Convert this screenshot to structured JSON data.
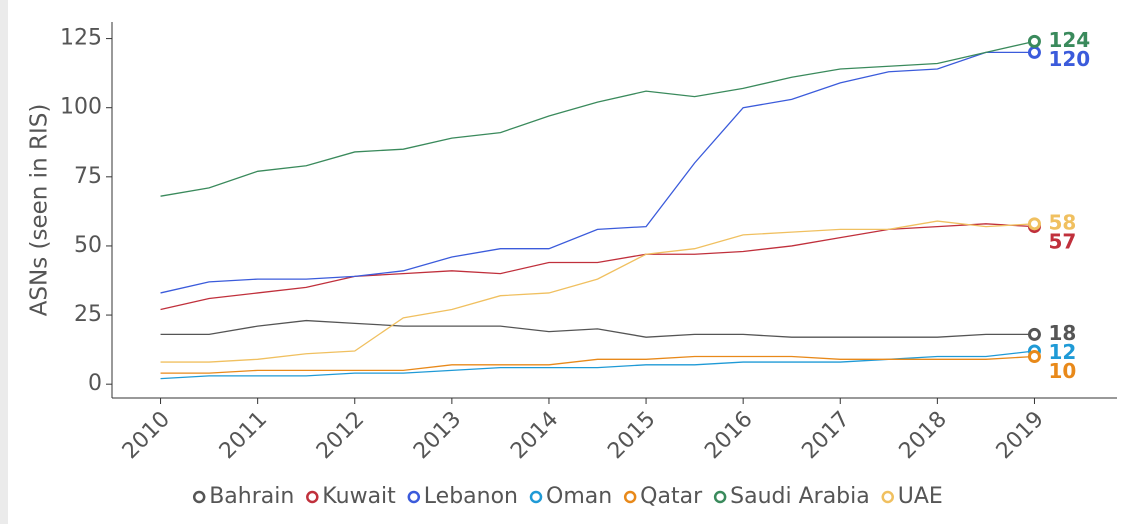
{
  "chart_data": {
    "type": "line",
    "y_label": "ASNs (seen in RIS)",
    "x": [
      2010,
      2010.5,
      2011,
      2011.5,
      2012,
      2012.5,
      2013,
      2013.5,
      2014,
      2014.5,
      2015,
      2015.5,
      2016,
      2016.5,
      2017,
      2017.5,
      2018,
      2018.5,
      2019
    ],
    "xlim": [
      2009.5,
      2019.85
    ],
    "xticks": [
      2010,
      2011,
      2012,
      2013,
      2014,
      2015,
      2016,
      2017,
      2018,
      2019
    ],
    "ylim": [
      -5,
      131
    ],
    "yticks": [
      0,
      25,
      50,
      75,
      100,
      125
    ],
    "grid": false,
    "legend": "bottom",
    "series": [
      {
        "name": "Bahrain",
        "color": "#555555",
        "values": [
          18,
          18,
          21,
          23,
          22,
          21,
          21,
          21,
          19,
          20,
          17,
          18,
          18,
          17,
          17,
          17,
          17,
          18,
          18
        ]
      },
      {
        "name": "Kuwait",
        "color": "#c0303c",
        "values": [
          27,
          31,
          33,
          35,
          39,
          40,
          41,
          40,
          44,
          44,
          47,
          47,
          48,
          50,
          53,
          56,
          57,
          58,
          57
        ]
      },
      {
        "name": "Lebanon",
        "color": "#3b5bdb",
        "values": [
          33,
          37,
          38,
          38,
          39,
          41,
          46,
          49,
          49,
          56,
          57,
          80,
          100,
          103,
          109,
          113,
          114,
          120,
          120
        ]
      },
      {
        "name": "Oman",
        "color": "#1f9ad6",
        "values": [
          2,
          3,
          3,
          3,
          4,
          4,
          5,
          6,
          6,
          6,
          7,
          7,
          8,
          8,
          8,
          9,
          10,
          10,
          12
        ]
      },
      {
        "name": "Qatar",
        "color": "#e8891a",
        "values": [
          4,
          4,
          5,
          5,
          5,
          5,
          7,
          7,
          7,
          9,
          9,
          10,
          10,
          10,
          9,
          9,
          9,
          9,
          10
        ]
      },
      {
        "name": "Saudi Arabia",
        "color": "#3a8a5c",
        "values": [
          68,
          71,
          77,
          79,
          84,
          85,
          89,
          91,
          97,
          102,
          106,
          104,
          107,
          111,
          114,
          115,
          116,
          120,
          124
        ]
      },
      {
        "name": "UAE",
        "color": "#f0c060",
        "values": [
          8,
          8,
          9,
          11,
          12,
          24,
          27,
          32,
          33,
          38,
          47,
          49,
          54,
          55,
          56,
          56,
          59,
          57,
          58
        ]
      }
    ]
  }
}
